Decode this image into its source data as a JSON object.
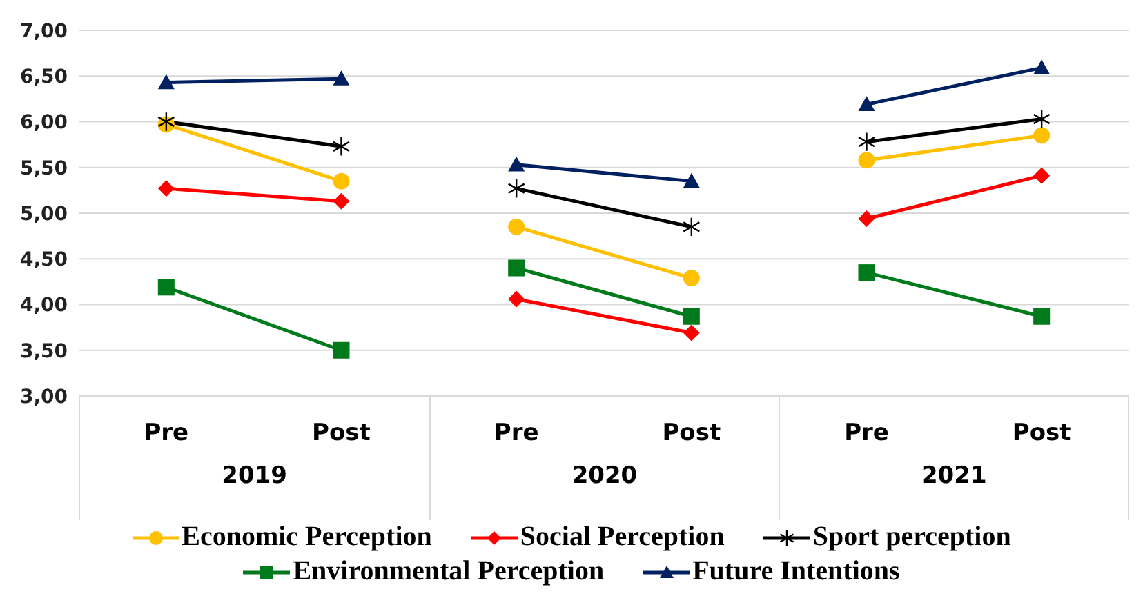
{
  "chart_data": {
    "type": "line",
    "categories": [
      "Pre",
      "Post",
      "Pre",
      "Post",
      "Pre",
      "Post"
    ],
    "annotations": [
      "2019",
      "2020",
      "2021"
    ],
    "ylim": [
      3,
      7
    ],
    "yticks": [
      {
        "value": 3,
        "label": "3,00"
      },
      {
        "value": 3.5,
        "label": "3,50"
      },
      {
        "value": 4,
        "label": "4,00"
      },
      {
        "value": 4.5,
        "label": "4,50"
      },
      {
        "value": 5,
        "label": "5,00"
      },
      {
        "value": 5.5,
        "label": "5,50"
      },
      {
        "value": 6,
        "label": "6,00"
      },
      {
        "value": 6.5,
        "label": "6,50"
      },
      {
        "value": 7,
        "label": "7,00"
      }
    ],
    "grid": "y",
    "legend": "bottom",
    "series": [
      {
        "name": "Economic Perception",
        "color": "#ffc000",
        "marker": "circle",
        "values": [
          5.97,
          5.35,
          4.85,
          4.29,
          5.58,
          5.85
        ]
      },
      {
        "name": "Social Perception",
        "color": "#ff0000",
        "marker": "diamond",
        "values": [
          5.27,
          5.13,
          4.06,
          3.69,
          4.94,
          5.41
        ]
      },
      {
        "name": "Sport perception",
        "color": "#000000",
        "marker": "cross",
        "values": [
          6.0,
          5.73,
          5.27,
          4.85,
          5.78,
          6.03
        ]
      },
      {
        "name": "Environmental Perception",
        "color": "#007a1a",
        "marker": "square",
        "values": [
          4.19,
          3.5,
          4.4,
          3.87,
          4.35,
          3.87
        ]
      },
      {
        "name": "Future Intentions",
        "color": "#002060",
        "marker": "triangle",
        "values": [
          6.43,
          6.47,
          5.53,
          5.35,
          6.19,
          6.59
        ]
      }
    ]
  }
}
